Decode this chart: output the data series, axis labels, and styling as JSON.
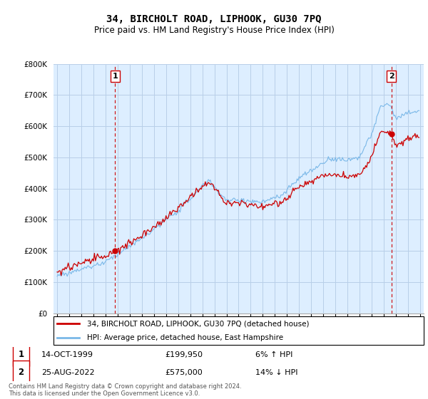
{
  "title": "34, BIRCHOLT ROAD, LIPHOOK, GU30 7PQ",
  "subtitle": "Price paid vs. HM Land Registry's House Price Index (HPI)",
  "legend_line1": "34, BIRCHOLT ROAD, LIPHOOK, GU30 7PQ (detached house)",
  "legend_line2": "HPI: Average price, detached house, East Hampshire",
  "transaction1_date": "14-OCT-1999",
  "transaction1_price": "£199,950",
  "transaction1_hpi": "6% ↑ HPI",
  "transaction2_date": "25-AUG-2022",
  "transaction2_price": "£575,000",
  "transaction2_hpi": "14% ↓ HPI",
  "footnote": "Contains HM Land Registry data © Crown copyright and database right 2024.\nThis data is licensed under the Open Government Licence v3.0.",
  "hpi_color": "#7ab8e8",
  "price_color": "#cc0000",
  "marker_color": "#cc0000",
  "vline_color": "#cc0000",
  "bg_fill_color": "#ddeeff",
  "ylim_min": 0,
  "ylim_max": 800000,
  "background_color": "#ffffff",
  "grid_color": "#b8cfe8"
}
